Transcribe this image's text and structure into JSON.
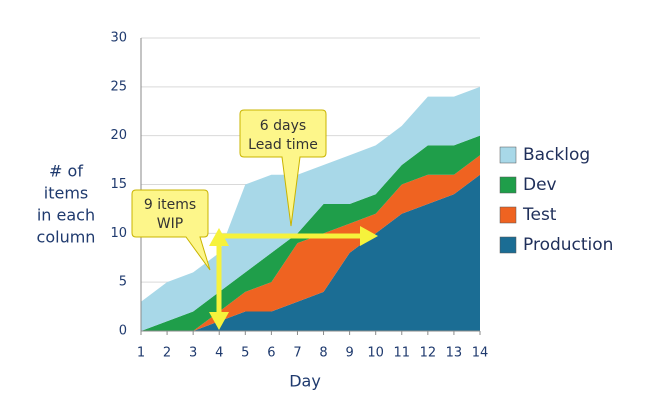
{
  "chart_data": {
    "type": "stacked_area",
    "y_label_lines": [
      "# of",
      "items",
      "in each",
      "column"
    ],
    "x_label": "Day",
    "x": [
      1,
      2,
      3,
      4,
      5,
      6,
      7,
      8,
      9,
      10,
      11,
      12,
      13,
      14
    ],
    "xlim": [
      1,
      14
    ],
    "xticks": [
      1,
      2,
      3,
      4,
      5,
      6,
      7,
      8,
      9,
      10,
      11,
      12,
      13,
      14
    ],
    "ylim": [
      0,
      30
    ],
    "yticks": [
      0,
      5,
      10,
      15,
      20,
      25,
      30
    ],
    "grid": true,
    "series": [
      {
        "name": "Backlog",
        "color": "#a8d8e8",
        "values": [
          3,
          4,
          4,
          4,
          9,
          8,
          6,
          4,
          5,
          5,
          4,
          5,
          5,
          5
        ]
      },
      {
        "name": "Dev",
        "color": "#1f9e4a",
        "values": [
          0,
          1,
          2,
          2,
          2,
          3,
          1,
          3,
          2,
          2,
          2,
          3,
          3,
          2
        ]
      },
      {
        "name": "Test",
        "color": "#ef6321",
        "values": [
          0,
          0,
          0,
          1,
          2,
          3,
          6,
          6,
          3,
          2,
          3,
          3,
          2,
          2
        ]
      },
      {
        "name": "Production",
        "color": "#1b6d94",
        "values": [
          0,
          0,
          0,
          1,
          2,
          2,
          3,
          4,
          8,
          10,
          12,
          13,
          14,
          16
        ]
      }
    ],
    "annotations": [
      {
        "lines": [
          "6 days",
          "Lead time"
        ]
      },
      {
        "lines": [
          "9 items",
          "WIP"
        ]
      }
    ]
  }
}
